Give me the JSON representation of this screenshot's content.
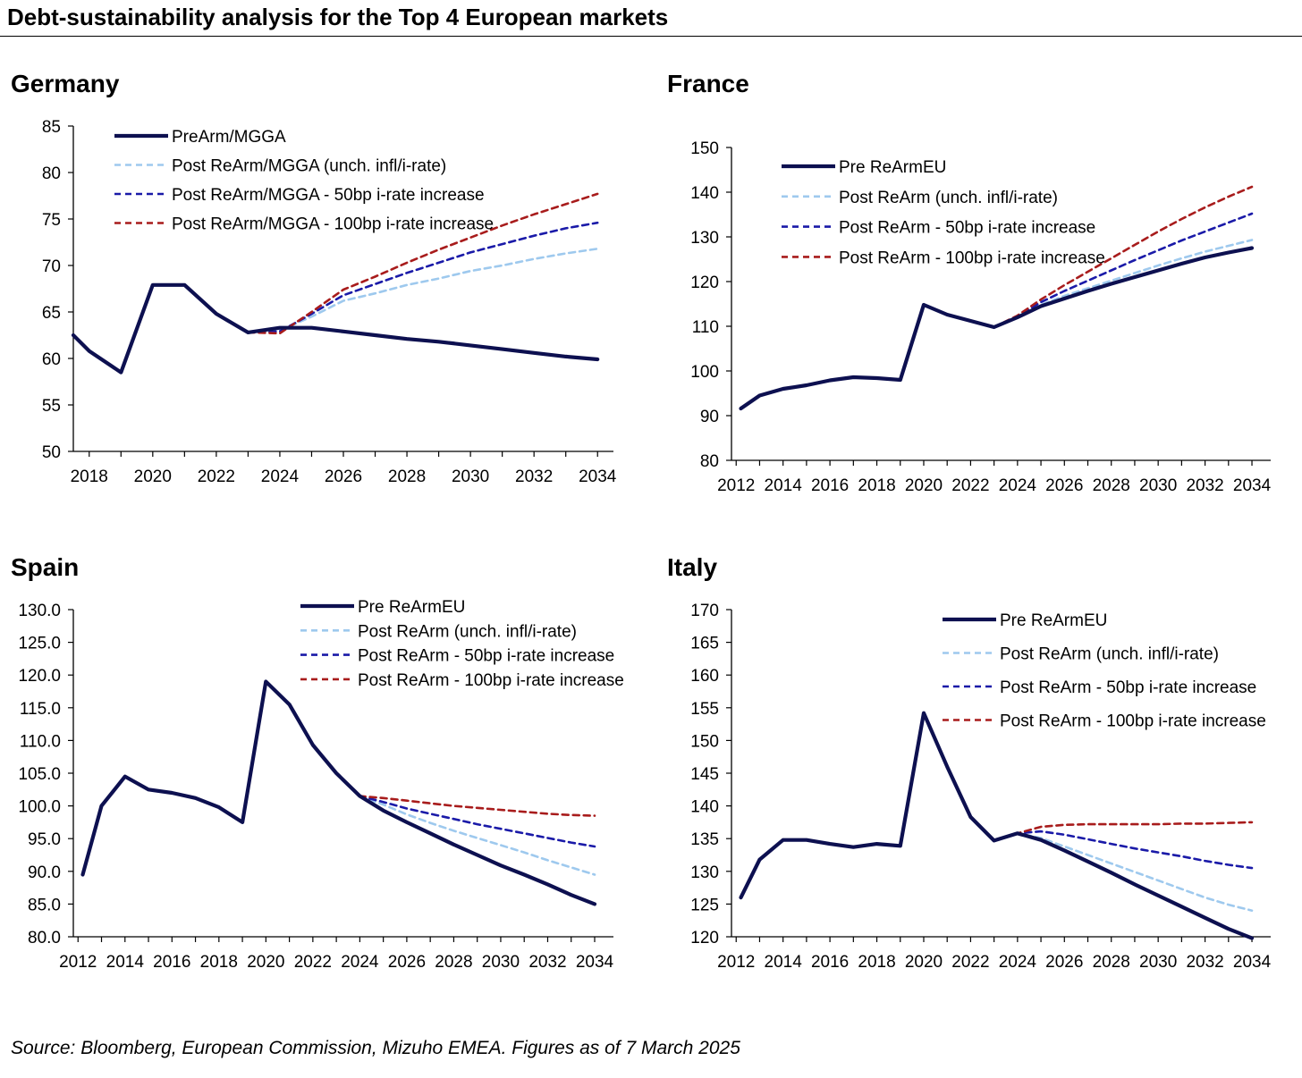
{
  "title": "Debt-sustainability analysis for the Top 4 European markets",
  "source": "Source: Bloomberg, European Commission, Mizuho EMEA. Figures as of 7 March 2025",
  "colors": {
    "pre": "#0d1050",
    "unch": "#9ec9ee",
    "bp50": "#1a1aa8",
    "bp100": "#a81c1c"
  },
  "chart_data": [
    {
      "type": "line",
      "title": "Germany",
      "xlim": [
        2017.5,
        2034.5
      ],
      "x_ticks": [
        2018,
        2020,
        2022,
        2024,
        2026,
        2028,
        2030,
        2032,
        2034
      ],
      "ylim": [
        50,
        85
      ],
      "y_ticks": [
        50,
        55,
        60,
        65,
        70,
        75,
        80,
        85
      ],
      "y_tick_decimals": 0,
      "legend_position": "top-left",
      "series": [
        {
          "name": "PreArm/MGGA",
          "style": "pre",
          "x": [
            2017.5,
            2018,
            2019,
            2020,
            2021,
            2022,
            2023,
            2024,
            2025,
            2026,
            2027,
            2028,
            2029,
            2030,
            2031,
            2032,
            2033,
            2034
          ],
          "y": [
            62.5,
            60.8,
            58.5,
            67.9,
            67.9,
            64.8,
            62.8,
            63.3,
            63.3,
            62.9,
            62.5,
            62.1,
            61.8,
            61.4,
            61.0,
            60.6,
            60.2,
            59.9
          ]
        },
        {
          "name": "Post ReArm/MGGA (unch. infl/i-rate)",
          "style": "unch",
          "x": [
            2023,
            2024,
            2025,
            2026,
            2027,
            2028,
            2029,
            2030,
            2031,
            2032,
            2033,
            2034
          ],
          "y": [
            62.8,
            63.0,
            64.5,
            66.2,
            67.0,
            67.9,
            68.6,
            69.4,
            70.0,
            70.7,
            71.3,
            71.8
          ]
        },
        {
          "name": "Post ReArm/MGGA - 50bp i-rate increase",
          "style": "bp50",
          "x": [
            2023,
            2024,
            2025,
            2026,
            2027,
            2028,
            2029,
            2030,
            2031,
            2032,
            2033,
            2034
          ],
          "y": [
            62.8,
            62.9,
            64.8,
            66.8,
            68.0,
            69.2,
            70.3,
            71.4,
            72.3,
            73.2,
            74.0,
            74.6
          ]
        },
        {
          "name": "Post ReArm/MGGA - 100bp i-rate increase",
          "style": "bp100",
          "x": [
            2023,
            2024,
            2025,
            2026,
            2027,
            2028,
            2029,
            2030,
            2031,
            2032,
            2033,
            2034
          ],
          "y": [
            62.8,
            62.7,
            65.0,
            67.4,
            68.8,
            70.3,
            71.7,
            73.0,
            74.3,
            75.5,
            76.6,
            77.7
          ]
        }
      ]
    },
    {
      "type": "line",
      "title": "France",
      "xlim": [
        2011.8,
        2034.8
      ],
      "x_ticks": [
        2012,
        2014,
        2016,
        2018,
        2020,
        2022,
        2024,
        2026,
        2028,
        2030,
        2032,
        2034
      ],
      "ylim": [
        80,
        150
      ],
      "y_ticks": [
        80,
        90,
        100,
        110,
        120,
        130,
        140,
        150
      ],
      "y_tick_decimals": 0,
      "legend_position": "top-left",
      "series": [
        {
          "name": "Pre ReArmEU",
          "style": "pre",
          "x": [
            2012.2,
            2013,
            2014,
            2015,
            2016,
            2017,
            2018,
            2019,
            2020,
            2021,
            2022,
            2023,
            2024,
            2025,
            2026,
            2027,
            2028,
            2029,
            2030,
            2031,
            2032,
            2033,
            2034
          ],
          "y": [
            91.6,
            94.5,
            96.0,
            96.8,
            97.9,
            98.6,
            98.4,
            98.0,
            114.8,
            112.6,
            111.2,
            109.8,
            112.0,
            114.5,
            116.2,
            117.9,
            119.5,
            121.0,
            122.5,
            124.0,
            125.4,
            126.5,
            127.5
          ]
        },
        {
          "name": "Post ReArm (unch. infl/i-rate)",
          "style": "unch",
          "x": [
            2023,
            2024,
            2025,
            2026,
            2027,
            2028,
            2029,
            2030,
            2031,
            2032,
            2033,
            2034
          ],
          "y": [
            109.8,
            112.0,
            114.8,
            116.8,
            118.5,
            120.2,
            121.9,
            123.6,
            125.2,
            126.7,
            128.0,
            129.3
          ]
        },
        {
          "name": "Post ReArm - 50bp i-rate increase",
          "style": "bp50",
          "x": [
            2023,
            2024,
            2025,
            2026,
            2027,
            2028,
            2029,
            2030,
            2031,
            2032,
            2033,
            2034
          ],
          "y": [
            109.8,
            112.2,
            115.4,
            117.9,
            120.2,
            122.5,
            124.8,
            127.0,
            129.2,
            131.2,
            133.2,
            135.2
          ]
        },
        {
          "name": "Post ReArm - 100bp i-rate increase",
          "style": "bp100",
          "x": [
            2023,
            2024,
            2025,
            2026,
            2027,
            2028,
            2029,
            2030,
            2031,
            2032,
            2033,
            2034
          ],
          "y": [
            109.8,
            112.4,
            116.0,
            119.2,
            122.2,
            125.2,
            128.2,
            131.2,
            134.0,
            136.6,
            139.0,
            141.2
          ]
        }
      ]
    },
    {
      "type": "line",
      "title": "Spain",
      "xlim": [
        2011.8,
        2034.8
      ],
      "x_ticks": [
        2012,
        2014,
        2016,
        2018,
        2020,
        2022,
        2024,
        2026,
        2028,
        2030,
        2032,
        2034
      ],
      "ylim": [
        80,
        130
      ],
      "y_ticks": [
        80,
        85,
        90,
        95,
        100,
        105,
        110,
        115,
        120,
        125,
        130
      ],
      "y_tick_decimals": 1,
      "legend_position": "top-center",
      "series": [
        {
          "name": "Pre ReArmEU",
          "style": "pre",
          "x": [
            2012.2,
            2013,
            2014,
            2015,
            2016,
            2017,
            2018,
            2019,
            2020,
            2021,
            2022,
            2023,
            2024,
            2025,
            2026,
            2027,
            2028,
            2029,
            2030,
            2031,
            2032,
            2033,
            2034
          ],
          "y": [
            89.5,
            100.0,
            104.5,
            102.5,
            102.0,
            101.2,
            99.8,
            97.5,
            119.0,
            115.5,
            109.3,
            105.0,
            101.5,
            99.3,
            97.5,
            95.8,
            94.1,
            92.5,
            90.9,
            89.5,
            88.0,
            86.4,
            85.0
          ]
        },
        {
          "name": "Post ReArm (unch. infl/i-rate)",
          "style": "unch",
          "x": [
            2023,
            2024,
            2025,
            2026,
            2027,
            2028,
            2029,
            2030,
            2031,
            2032,
            2033,
            2034
          ],
          "y": [
            105.0,
            101.5,
            100.2,
            98.7,
            97.4,
            96.2,
            95.1,
            94.0,
            92.9,
            91.7,
            90.6,
            89.5
          ]
        },
        {
          "name": "Post ReArm - 50bp i-rate increase",
          "style": "bp50",
          "x": [
            2023,
            2024,
            2025,
            2026,
            2027,
            2028,
            2029,
            2030,
            2031,
            2032,
            2033,
            2034
          ],
          "y": [
            105.0,
            101.5,
            100.6,
            99.6,
            98.8,
            98.0,
            97.2,
            96.5,
            95.8,
            95.1,
            94.4,
            93.8
          ]
        },
        {
          "name": "Post ReArm - 100bp i-rate increase",
          "style": "bp100",
          "x": [
            2023,
            2024,
            2025,
            2026,
            2027,
            2028,
            2029,
            2030,
            2031,
            2032,
            2033,
            2034
          ],
          "y": [
            105.0,
            101.5,
            101.2,
            100.8,
            100.4,
            100.0,
            99.7,
            99.4,
            99.1,
            98.8,
            98.6,
            98.5
          ]
        }
      ]
    },
    {
      "type": "line",
      "title": "Italy",
      "xlim": [
        2011.8,
        2034.8
      ],
      "x_ticks": [
        2012,
        2014,
        2016,
        2018,
        2020,
        2022,
        2024,
        2026,
        2028,
        2030,
        2032,
        2034
      ],
      "ylim": [
        120,
        170
      ],
      "y_ticks": [
        120,
        125,
        130,
        135,
        140,
        145,
        150,
        155,
        160,
        165,
        170
      ],
      "y_tick_decimals": 0,
      "legend_position": "top-center",
      "series": [
        {
          "name": "Pre ReArmEU",
          "style": "pre",
          "x": [
            2012.2,
            2013,
            2014,
            2015,
            2016,
            2017,
            2018,
            2019,
            2020,
            2021,
            2022,
            2023,
            2024,
            2025,
            2026,
            2027,
            2028,
            2029,
            2030,
            2031,
            2032,
            2033,
            2034
          ],
          "y": [
            126.0,
            131.8,
            134.8,
            134.8,
            134.2,
            133.7,
            134.2,
            133.9,
            154.2,
            146.0,
            138.3,
            134.7,
            135.8,
            134.8,
            133.2,
            131.5,
            129.8,
            128.0,
            126.3,
            124.6,
            122.9,
            121.2,
            119.8
          ]
        },
        {
          "name": "Post ReArm (unch. infl/i-rate)",
          "style": "unch",
          "x": [
            2023,
            2024,
            2025,
            2026,
            2027,
            2028,
            2029,
            2030,
            2031,
            2032,
            2033,
            2034
          ],
          "y": [
            134.7,
            135.8,
            135.1,
            133.8,
            132.5,
            131.2,
            129.9,
            128.6,
            127.3,
            126.0,
            124.9,
            124.0
          ]
        },
        {
          "name": "Post ReArm - 50bp i-rate increase",
          "style": "bp50",
          "x": [
            2023,
            2024,
            2025,
            2026,
            2027,
            2028,
            2029,
            2030,
            2031,
            2032,
            2033,
            2034
          ],
          "y": [
            134.7,
            135.8,
            136.1,
            135.6,
            134.9,
            134.2,
            133.5,
            132.9,
            132.3,
            131.6,
            131.0,
            130.5
          ]
        },
        {
          "name": "Post ReArm - 100bp i-rate increase",
          "style": "bp100",
          "x": [
            2023,
            2024,
            2025,
            2026,
            2027,
            2028,
            2029,
            2030,
            2031,
            2032,
            2033,
            2034
          ],
          "y": [
            134.7,
            135.8,
            136.8,
            137.1,
            137.2,
            137.2,
            137.2,
            137.2,
            137.3,
            137.3,
            137.4,
            137.5
          ]
        }
      ]
    }
  ]
}
